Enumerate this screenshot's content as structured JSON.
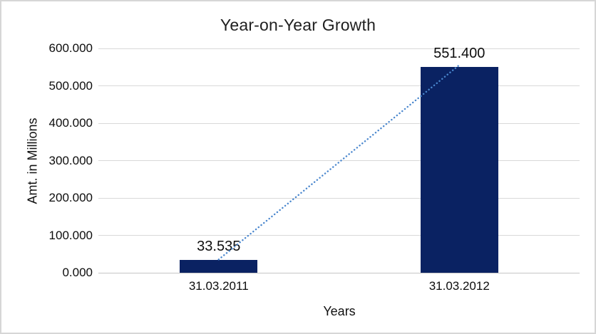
{
  "window": {
    "background": "#ffffff",
    "border_color": "#d6d6d6"
  },
  "chart_data": {
    "type": "bar",
    "title": "Year-on-Year Growth",
    "xlabel": "Years",
    "ylabel": "Amt. in Millions",
    "categories": [
      "31.03.2011",
      "31.03.2012"
    ],
    "values": [
      33.535,
      551.4
    ],
    "data_labels": [
      "33.535",
      "551.400"
    ],
    "ylim": [
      0,
      600
    ],
    "ytick_labels": [
      "0.000",
      "100.000",
      "200.000",
      "300.000",
      "400.000",
      "500.000",
      "600.000"
    ],
    "grid": true,
    "legend": "none",
    "trendline": {
      "style": "dotted",
      "connects": [
        "31.03.2011",
        "31.03.2012"
      ]
    },
    "styles": {
      "bar_color": "#0a2262",
      "gridline_color": "#d9d9d9",
      "axis_line_color": "#c6c6c6",
      "trendline_color": "#4a87ce",
      "text_color": "#0d0d0d",
      "title_color": "#1f1f1f"
    }
  }
}
